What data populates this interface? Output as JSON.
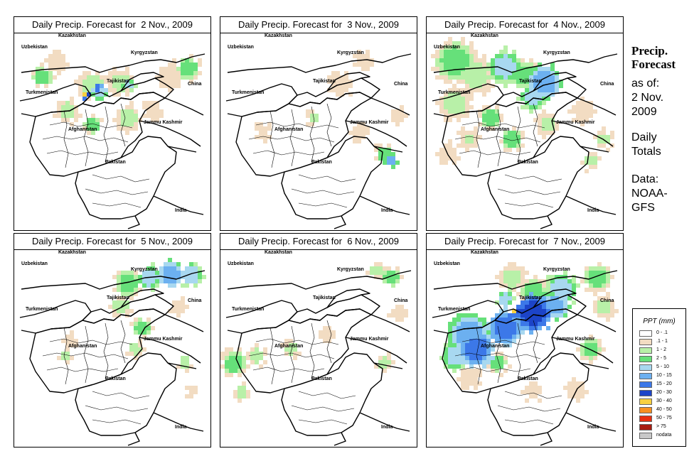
{
  "panels": [
    {
      "title": "Daily Precip. Forecast for  2 Nov., 2009"
    },
    {
      "title": "Daily Precip. Forecast for  3 Nov., 2009"
    },
    {
      "title": "Daily Precip. Forecast for  4 Nov., 2009"
    },
    {
      "title": "Daily Precip. Forecast for  5 Nov., 2009"
    },
    {
      "title": "Daily Precip. Forecast for  6 Nov., 2009"
    },
    {
      "title": "Daily Precip. Forecast for  7 Nov., 2009"
    }
  ],
  "map_labels": {
    "uzbekistan": "Uzbekistan",
    "kazakhstan": "Kazakhstan",
    "kyrgyzstan": "Kyrgyzstan",
    "tajikistan": "Tajikistan",
    "turkmenistan": "Turkmenistan",
    "china": "China",
    "afghanistan": "Afghanistan",
    "jammu_kashmir": "Jammu Kashmir",
    "pakistan": "Pakistan",
    "india": "India"
  },
  "sidebar": {
    "title_line1": "Precip.",
    "title_line2": "Forecast",
    "asof_line1": "as of:",
    "asof_line2": "2 Nov.",
    "asof_line3": "2009",
    "totals_line1": "Daily",
    "totals_line2": "Totals",
    "data_line1": "Data:",
    "data_line2": "NOAA-",
    "data_line3": "GFS"
  },
  "legend": {
    "title": "PPT (mm)",
    "items": [
      {
        "label": "0 - .1",
        "color": "#ffffff"
      },
      {
        "label": ".1 - 1",
        "color": "#f2dcc2"
      },
      {
        "label": "1 - 2",
        "color": "#b8f0a8"
      },
      {
        "label": "2 - 5",
        "color": "#66e07a"
      },
      {
        "label": "5 - 10",
        "color": "#a8d8f0"
      },
      {
        "label": "10 - 15",
        "color": "#6cb0f0"
      },
      {
        "label": "15 - 20",
        "color": "#3c78e8"
      },
      {
        "label": "20 - 30",
        "color": "#1c44c8"
      },
      {
        "label": "30 - 40",
        "color": "#f8d040"
      },
      {
        "label": "40 - 50",
        "color": "#f89020"
      },
      {
        "label": "50 - 75",
        "color": "#e83010"
      },
      {
        "label": "> 75",
        "color": "#a81c10"
      },
      {
        "label": "nodata",
        "color": "#c8c8c8"
      }
    ]
  }
}
